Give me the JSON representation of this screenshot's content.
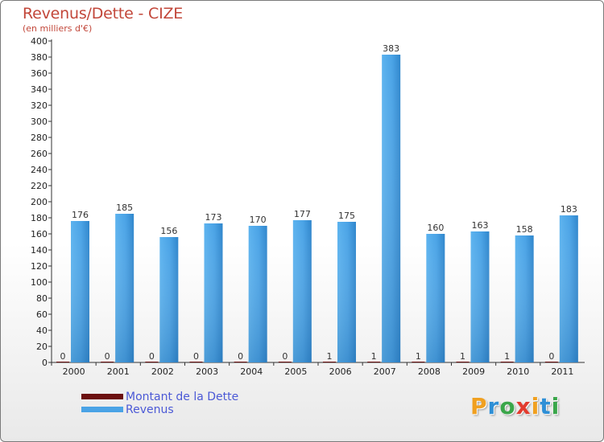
{
  "header": {
    "title": "Revenus/Dette - CIZE",
    "subtitle": "(en milliers d'€)"
  },
  "legend": {
    "items": [
      {
        "label": "Montant de la Dette",
        "color": "#6b0f0f"
      },
      {
        "label": "Revenus",
        "color": "#4aa3e6"
      }
    ]
  },
  "brand": {
    "letters": [
      "P",
      "r",
      "o",
      "x",
      "i",
      "t",
      "i"
    ],
    "colors": [
      "#f0a020",
      "#2e8fd6",
      "#3aa64a",
      "#e23b2e",
      "#f0a020",
      "#2e8fd6",
      "#3aa64a"
    ]
  },
  "chart_data": {
    "type": "bar",
    "title": "Revenus/Dette - CIZE",
    "ylabel": "(en milliers d'€)",
    "xlabel": "",
    "ylim": [
      0,
      400
    ],
    "ytick_step": 20,
    "categories": [
      "2000",
      "2001",
      "2002",
      "2003",
      "2004",
      "2005",
      "2006",
      "2007",
      "2008",
      "2009",
      "2010",
      "2011"
    ],
    "series": [
      {
        "name": "Montant de la Dette",
        "color": "#6b0f0f",
        "values": [
          0,
          0,
          0,
          0,
          0,
          0,
          1,
          1,
          1,
          1,
          1,
          0
        ]
      },
      {
        "name": "Revenus",
        "color": "#4aa3e6",
        "values": [
          176,
          185,
          156,
          173,
          170,
          177,
          175,
          383,
          160,
          163,
          158,
          183
        ]
      }
    ],
    "grid": false,
    "legend_position": "bottom-left"
  }
}
